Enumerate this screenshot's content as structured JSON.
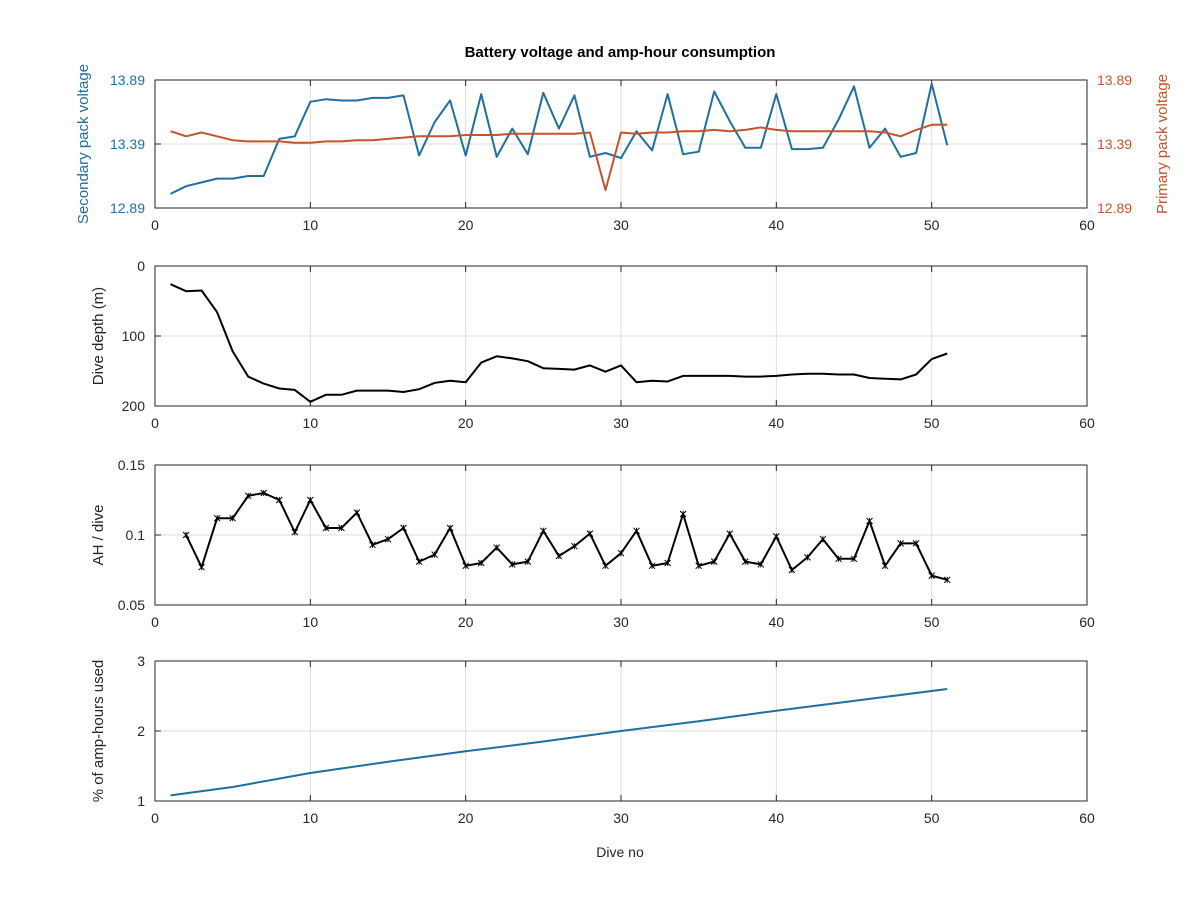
{
  "figure": {
    "title": "Battery voltage and amp-hour consumption",
    "xlabel": "Dive no",
    "colors": {
      "secondary": "#1f6fa0",
      "primary": "#c4552b",
      "axis": "#262626",
      "grid": "#dddddd",
      "black": "#000000"
    }
  },
  "chart_data": [
    {
      "type": "line",
      "title": "Battery voltage and amp-hour consumption",
      "xlabel": "",
      "ylabel": "Secondary pack voltage",
      "ylabel_right": "Primary pack voltage",
      "xlim": [
        0,
        60
      ],
      "xticks": [
        "0",
        "10",
        "20",
        "30",
        "40",
        "50",
        "60"
      ],
      "ylim": [
        12.89,
        13.89
      ],
      "yticks": [
        {
          "value": 12.89,
          "label": "12.89"
        },
        {
          "value": 13.39,
          "label": "13.39"
        },
        {
          "value": 13.89,
          "label": "13.89"
        }
      ],
      "ylim_right": [
        12.89,
        13.89
      ],
      "yticks_right": [
        {
          "value": 12.89,
          "label": "12.89"
        },
        {
          "value": 13.39,
          "label": "13.39"
        },
        {
          "value": 13.89,
          "label": "13.89"
        }
      ],
      "grid": true,
      "series": [
        {
          "axis": "left",
          "color": "#1f6fa0",
          "x": [
            1,
            2,
            3,
            4,
            5,
            6,
            7,
            8,
            9,
            10,
            11,
            12,
            13,
            14,
            15,
            16,
            17,
            18,
            19,
            20,
            21,
            22,
            23,
            24,
            25,
            26,
            27,
            28,
            29,
            30,
            31,
            32,
            33,
            34,
            35,
            36,
            37,
            38,
            39,
            40,
            41,
            42,
            43,
            44,
            45,
            46,
            47,
            48,
            49,
            50,
            51
          ],
          "y": [
            13.0,
            13.06,
            13.09,
            13.12,
            13.12,
            13.14,
            13.14,
            13.43,
            13.45,
            13.72,
            13.74,
            13.73,
            13.73,
            13.75,
            13.75,
            13.77,
            13.3,
            13.56,
            13.73,
            13.3,
            13.78,
            13.29,
            13.51,
            13.31,
            13.79,
            13.51,
            13.77,
            13.29,
            13.32,
            13.28,
            13.49,
            13.34,
            13.78,
            13.31,
            13.33,
            13.8,
            13.57,
            13.36,
            13.36,
            13.78,
            13.35,
            13.35,
            13.36,
            13.58,
            13.84,
            13.36,
            13.51,
            13.29,
            13.32,
            13.86,
            13.38
          ]
        },
        {
          "axis": "right",
          "color": "#c4552b",
          "x": [
            1,
            2,
            3,
            4,
            5,
            6,
            7,
            8,
            9,
            10,
            11,
            12,
            13,
            14,
            15,
            16,
            17,
            18,
            19,
            20,
            21,
            22,
            23,
            24,
            25,
            26,
            27,
            28,
            29,
            30,
            31,
            32,
            33,
            34,
            35,
            36,
            37,
            38,
            39,
            40,
            41,
            42,
            43,
            44,
            45,
            46,
            47,
            48,
            49,
            50,
            51
          ],
          "y": [
            13.49,
            13.45,
            13.48,
            13.45,
            13.42,
            13.41,
            13.41,
            13.41,
            13.4,
            13.4,
            13.41,
            13.41,
            13.42,
            13.42,
            13.43,
            13.44,
            13.45,
            13.45,
            13.45,
            13.46,
            13.46,
            13.46,
            13.47,
            13.47,
            13.47,
            13.47,
            13.47,
            13.48,
            13.03,
            13.48,
            13.47,
            13.48,
            13.48,
            13.49,
            13.49,
            13.5,
            13.49,
            13.5,
            13.52,
            13.5,
            13.49,
            13.49,
            13.49,
            13.49,
            13.49,
            13.49,
            13.48,
            13.45,
            13.5,
            13.54,
            13.54
          ]
        }
      ]
    },
    {
      "type": "line",
      "title": "",
      "xlabel": "",
      "ylabel": "Dive depth (m)",
      "xlim": [
        0,
        60
      ],
      "xticks": [
        "0",
        "10",
        "20",
        "30",
        "40",
        "50",
        "60"
      ],
      "ylim": [
        0,
        200
      ],
      "reversed_y": true,
      "yticks": [
        {
          "value": 0,
          "label": "0"
        },
        {
          "value": 100,
          "label": "100"
        },
        {
          "value": 200,
          "label": "200"
        }
      ],
      "grid": true,
      "series": [
        {
          "color": "#000000",
          "x": [
            1,
            2,
            3,
            4,
            5,
            6,
            7,
            8,
            9,
            10,
            11,
            12,
            13,
            14,
            15,
            16,
            17,
            18,
            19,
            20,
            21,
            22,
            23,
            24,
            25,
            26,
            27,
            28,
            29,
            30,
            31,
            32,
            33,
            34,
            35,
            36,
            37,
            38,
            39,
            40,
            41,
            42,
            43,
            44,
            45,
            46,
            47,
            48,
            49,
            50,
            51
          ],
          "y": [
            26,
            36,
            35,
            66,
            122,
            158,
            168,
            175,
            177,
            194,
            184,
            184,
            178,
            178,
            178,
            180,
            176,
            167,
            164,
            166,
            138,
            129,
            132,
            136,
            146,
            147,
            148,
            142,
            151,
            142,
            166,
            164,
            165,
            157,
            157,
            157,
            157,
            158,
            158,
            157,
            155,
            154,
            154,
            155,
            155,
            160,
            161,
            162,
            155,
            133,
            125
          ]
        }
      ]
    },
    {
      "type": "line",
      "title": "",
      "xlabel": "",
      "ylabel": "AH / dive",
      "xlim": [
        0,
        60
      ],
      "xticks": [
        "0",
        "10",
        "20",
        "30",
        "40",
        "50",
        "60"
      ],
      "ylim": [
        0.05,
        0.15
      ],
      "yticks": [
        {
          "value": 0.05,
          "label": "0.05"
        },
        {
          "value": 0.1,
          "label": "0.1"
        },
        {
          "value": 0.15,
          "label": "0.15"
        }
      ],
      "grid": true,
      "markers": true,
      "series": [
        {
          "color": "#000000",
          "x": [
            2,
            3,
            4,
            5,
            6,
            7,
            8,
            9,
            10,
            11,
            12,
            13,
            14,
            15,
            16,
            17,
            18,
            19,
            20,
            21,
            22,
            23,
            24,
            25,
            26,
            27,
            28,
            29,
            30,
            31,
            32,
            33,
            34,
            35,
            36,
            37,
            38,
            39,
            40,
            41,
            42,
            43,
            44,
            45,
            46,
            47,
            48,
            49,
            50,
            51
          ],
          "y": [
            0.1,
            0.077,
            0.112,
            0.112,
            0.128,
            0.13,
            0.125,
            0.102,
            0.125,
            0.105,
            0.105,
            0.116,
            0.093,
            0.097,
            0.105,
            0.081,
            0.086,
            0.105,
            0.078,
            0.08,
            0.091,
            0.079,
            0.081,
            0.103,
            0.085,
            0.092,
            0.101,
            0.078,
            0.087,
            0.103,
            0.078,
            0.08,
            0.115,
            0.078,
            0.081,
            0.101,
            0.081,
            0.079,
            0.099,
            0.075,
            0.084,
            0.097,
            0.083,
            0.083,
            0.11,
            0.078,
            0.094,
            0.094,
            0.071,
            0.068
          ]
        }
      ]
    },
    {
      "type": "line",
      "title": "",
      "xlabel": "Dive no",
      "ylabel": "% of amp-hours used",
      "xlim": [
        0,
        60
      ],
      "xticks": [
        "0",
        "10",
        "20",
        "30",
        "40",
        "50",
        "60"
      ],
      "ylim": [
        1,
        3
      ],
      "yticks": [
        {
          "value": 1,
          "label": "1"
        },
        {
          "value": 2,
          "label": "2"
        },
        {
          "value": 3,
          "label": "3"
        }
      ],
      "grid": true,
      "series": [
        {
          "color": "#1f6fa0",
          "x": [
            1,
            5,
            10,
            15,
            20,
            25,
            30,
            35,
            40,
            45,
            51
          ],
          "y": [
            1.08,
            1.2,
            1.4,
            1.56,
            1.71,
            1.85,
            2.0,
            2.14,
            2.29,
            2.43,
            2.6
          ]
        }
      ]
    }
  ]
}
